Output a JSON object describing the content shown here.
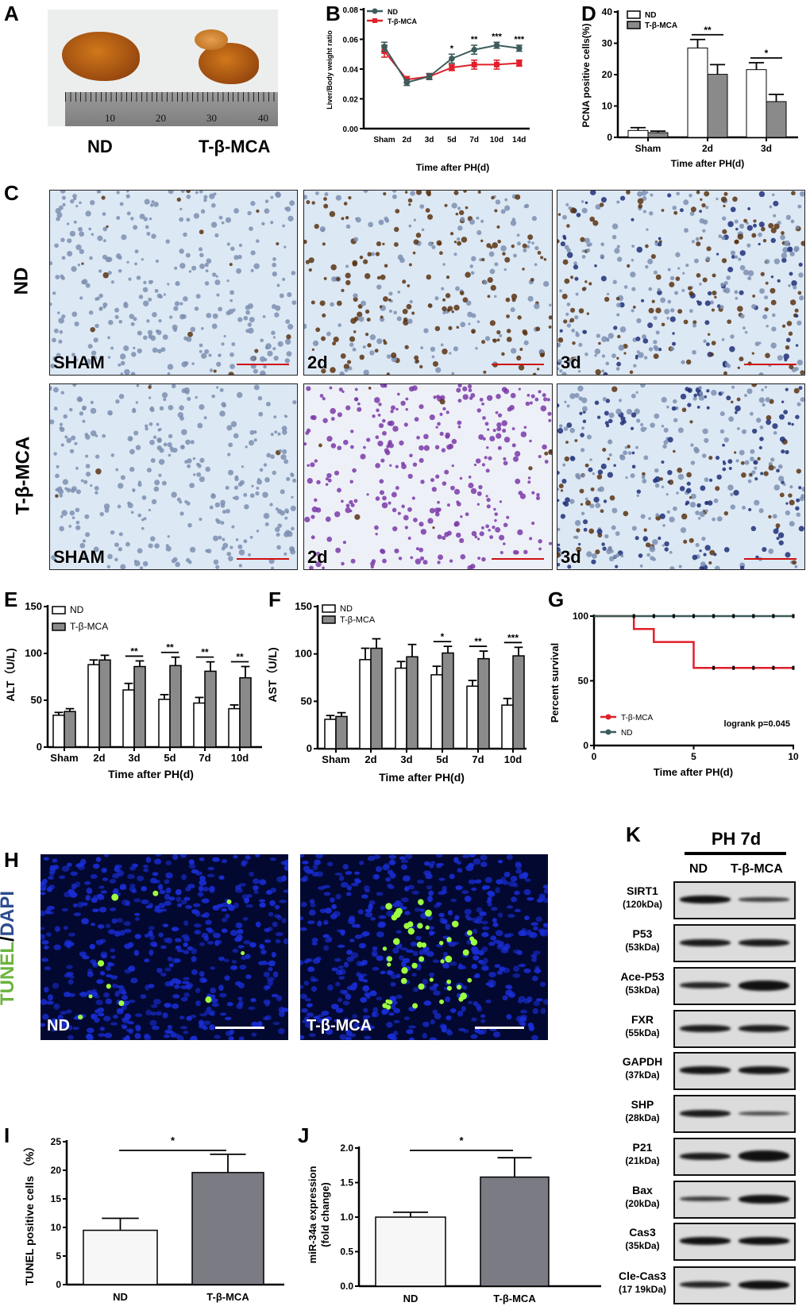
{
  "panel_letters": {
    "A": "A",
    "B": "B",
    "C": "C",
    "D": "D",
    "E": "E",
    "F": "F",
    "G": "G",
    "H": "H",
    "I": "I",
    "J": "J",
    "K": "K"
  },
  "panel_a": {
    "labels": [
      "ND",
      "T-β-MCA"
    ],
    "ruler_ticks": [
      "10",
      "20",
      "30",
      "40"
    ]
  },
  "panel_c": {
    "row_labels": [
      "ND",
      "T-β-MCA"
    ],
    "col_labels": [
      "SHAM",
      "2d",
      "3d"
    ],
    "scale_bar_color": "#d01010"
  },
  "panel_h": {
    "stain_label_tunel": "TUNEL",
    "stain_label_sep": "/",
    "stain_label_dapi": "DAPI",
    "tunel_color": "#6cb33e",
    "dapi_color": "#2a4b8d",
    "image_labels": [
      "ND",
      "T-β-MCA"
    ]
  },
  "panel_k": {
    "title": "PH 7d",
    "lanes": [
      "ND",
      "T-β-MCA"
    ],
    "blots": [
      {
        "protein": "SIRT1",
        "size": "(120kDa)"
      },
      {
        "protein": "P53",
        "size": "(53kDa)"
      },
      {
        "protein": "Ace-P53",
        "size": "(53kDa)"
      },
      {
        "protein": "FXR",
        "size": "(55kDa)"
      },
      {
        "protein": "GAPDH",
        "size": "(37kDa)"
      },
      {
        "protein": "SHP",
        "size": "(28kDa)"
      },
      {
        "protein": "P21",
        "size": "(21kDa)"
      },
      {
        "protein": "Bax",
        "size": "(20kDa)"
      },
      {
        "protein": "Cas3",
        "size": "(35kDa)"
      },
      {
        "protein": "Cle-Cas3",
        "size": "(17 19kDa)"
      }
    ]
  },
  "colors": {
    "nd_line": "#3d5c5c",
    "tbmca_line": "#e0202a",
    "nd_bar": "#ffffff",
    "tbmca_bar": "#8a8a8a",
    "tbmca_bar_dark": "#7b7b83"
  },
  "chart_data": [
    {
      "id": "B",
      "type": "line",
      "xlabel": "Time after PH(d)",
      "ylabel": "Liver/Body weight ratio",
      "categories": [
        "Sham",
        "2d",
        "3d",
        "5d",
        "7d",
        "10d",
        "14d"
      ],
      "ylim": [
        0,
        0.08
      ],
      "yticks": [
        "0.00",
        "0.02",
        "0.04",
        "0.06",
        "0.08"
      ],
      "legend": "top-left",
      "series": [
        {
          "name": "ND",
          "values": [
            0.055,
            0.031,
            0.035,
            0.047,
            0.053,
            0.056,
            0.054
          ],
          "errors": [
            0.003,
            0.002,
            0.002,
            0.003,
            0.003,
            0.002,
            0.002
          ]
        },
        {
          "name": "T-β-MCA",
          "values": [
            0.052,
            0.033,
            0.035,
            0.041,
            0.043,
            0.043,
            0.044
          ],
          "errors": [
            0.004,
            0.002,
            0.002,
            0.002,
            0.003,
            0.003,
            0.002
          ]
        }
      ],
      "significance": [
        "",
        "",
        "",
        "*",
        "**",
        "***",
        "***"
      ]
    },
    {
      "id": "D",
      "type": "bar",
      "xlabel": "Time after PH(d)",
      "ylabel": "PCNA positive cells(%)",
      "categories": [
        "Sham",
        "2d",
        "3d"
      ],
      "ylim": [
        0,
        40
      ],
      "yticks": [
        "0",
        "10",
        "20",
        "30",
        "40"
      ],
      "legend": "top-left",
      "series": [
        {
          "name": "ND",
          "values": [
            2.2,
            28.5,
            21.6
          ],
          "errors": [
            0.9,
            2.7,
            2.2
          ]
        },
        {
          "name": "T-β-MCA",
          "values": [
            1.5,
            20.1,
            11.4
          ],
          "errors": [
            0.5,
            3.1,
            2.3
          ]
        }
      ],
      "significance": [
        "",
        "**",
        "*"
      ]
    },
    {
      "id": "E",
      "type": "bar",
      "xlabel": "Time after PH(d)",
      "ylabel": "ALT（U/L)",
      "categories": [
        "Sham",
        "2d",
        "3d",
        "5d",
        "7d",
        "10d"
      ],
      "ylim": [
        0,
        150
      ],
      "yticks": [
        "0",
        "50",
        "100",
        "150"
      ],
      "legend": "top-left",
      "series": [
        {
          "name": "ND",
          "values": [
            34,
            88,
            61,
            51,
            47,
            41
          ],
          "errors": [
            3,
            5,
            7,
            5,
            6,
            4
          ]
        },
        {
          "name": "T-β-MCA",
          "values": [
            38,
            93,
            86,
            87,
            81,
            74
          ],
          "errors": [
            3,
            5,
            6,
            9,
            10,
            12
          ]
        }
      ],
      "significance": [
        "",
        "",
        "**",
        "**",
        "**",
        "**"
      ]
    },
    {
      "id": "F",
      "type": "bar",
      "xlabel": "Time after PH(d)",
      "ylabel": "AST（U/L)",
      "categories": [
        "Sham",
        "2d",
        "3d",
        "5d",
        "7d",
        "10d"
      ],
      "ylim": [
        0,
        150
      ],
      "yticks": [
        "0",
        "50",
        "100",
        "150"
      ],
      "legend": "top-left",
      "series": [
        {
          "name": "ND",
          "values": [
            31,
            94,
            85,
            78,
            66,
            46
          ],
          "errors": [
            4,
            12,
            7,
            9,
            6,
            7
          ]
        },
        {
          "name": "T-β-MCA",
          "values": [
            34,
            106,
            97,
            101,
            95,
            98
          ],
          "errors": [
            4,
            10,
            13,
            7,
            8,
            9
          ]
        }
      ],
      "significance": [
        "",
        "",
        "",
        "*",
        "**",
        "***"
      ]
    },
    {
      "id": "G",
      "type": "line",
      "xlabel": "Time after PH(d)",
      "ylabel": "Percent survival",
      "xlim": [
        0,
        10
      ],
      "xticks": [
        "0",
        "5",
        "10"
      ],
      "ylim": [
        0,
        100
      ],
      "yticks": [
        "0",
        "50",
        "100"
      ],
      "legend": "bottom-left",
      "annotation": "logrank p=0.045",
      "series": [
        {
          "name": "T-β-MCA",
          "steps": [
            [
              0,
              100
            ],
            [
              2,
              90
            ],
            [
              3,
              80
            ],
            [
              5,
              60
            ],
            [
              10,
              60
            ]
          ],
          "censored": [
            6,
            7,
            8,
            9,
            10
          ]
        },
        {
          "name": "ND",
          "steps": [
            [
              0,
              100
            ],
            [
              10,
              100
            ]
          ],
          "censored": [
            2,
            3,
            4,
            5,
            6,
            7,
            8,
            9,
            10
          ]
        }
      ]
    },
    {
      "id": "I",
      "type": "bar",
      "xlabel": "",
      "ylabel": "TUNEL positive cells （%）",
      "categories": [
        "ND",
        "T-β-MCA"
      ],
      "ylim": [
        0,
        25
      ],
      "yticks": [
        "0",
        "5",
        "10",
        "15",
        "20",
        "25"
      ],
      "values": [
        9.5,
        19.6
      ],
      "errors": [
        2.1,
        3.2
      ],
      "significance": "*"
    },
    {
      "id": "J",
      "type": "bar",
      "xlabel": "",
      "ylabel": [
        "miR-34a expression",
        "(fold change)"
      ],
      "categories": [
        "ND",
        "T-β-MCA"
      ],
      "ylim": [
        0,
        2.0
      ],
      "yticks": [
        "0.0",
        "0.5",
        "1.0",
        "1.5",
        "2.0"
      ],
      "values": [
        1.0,
        1.58
      ],
      "errors": [
        0.07,
        0.28
      ],
      "significance": "*"
    }
  ]
}
